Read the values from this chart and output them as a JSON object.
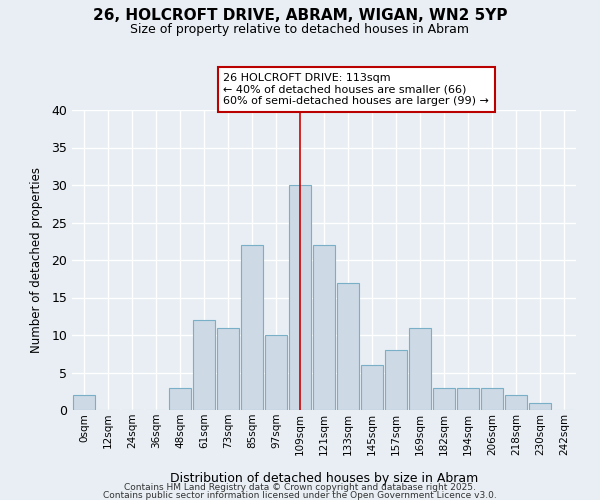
{
  "title": "26, HOLCROFT DRIVE, ABRAM, WIGAN, WN2 5YP",
  "subtitle": "Size of property relative to detached houses in Abram",
  "xlabel": "Distribution of detached houses by size in Abram",
  "ylabel": "Number of detached properties",
  "bar_labels": [
    "0sqm",
    "12sqm",
    "24sqm",
    "36sqm",
    "48sqm",
    "61sqm",
    "73sqm",
    "85sqm",
    "97sqm",
    "109sqm",
    "121sqm",
    "133sqm",
    "145sqm",
    "157sqm",
    "169sqm",
    "182sqm",
    "194sqm",
    "206sqm",
    "218sqm",
    "230sqm",
    "242sqm"
  ],
  "bar_values": [
    2,
    0,
    0,
    0,
    3,
    12,
    11,
    22,
    10,
    30,
    22,
    17,
    6,
    8,
    11,
    3,
    3,
    3,
    2,
    1,
    0
  ],
  "bar_color": "#cdd9e5",
  "bar_edge_color": "#7aafc8",
  "ylim": [
    0,
    40
  ],
  "yticks": [
    0,
    5,
    10,
    15,
    20,
    25,
    30,
    35,
    40
  ],
  "vline_index": 9,
  "vline_color": "#cc0000",
  "annotation_line1": "26 HOLCROFT DRIVE: 113sqm",
  "annotation_line2": "← 40% of detached houses are smaller (66)",
  "annotation_line3": "60% of semi-detached houses are larger (99) →",
  "background_color": "#e8eef4",
  "grid_color": "white",
  "footer_line1": "Contains HM Land Registry data © Crown copyright and database right 2025.",
  "footer_line2": "Contains public sector information licensed under the Open Government Licence v3.0."
}
